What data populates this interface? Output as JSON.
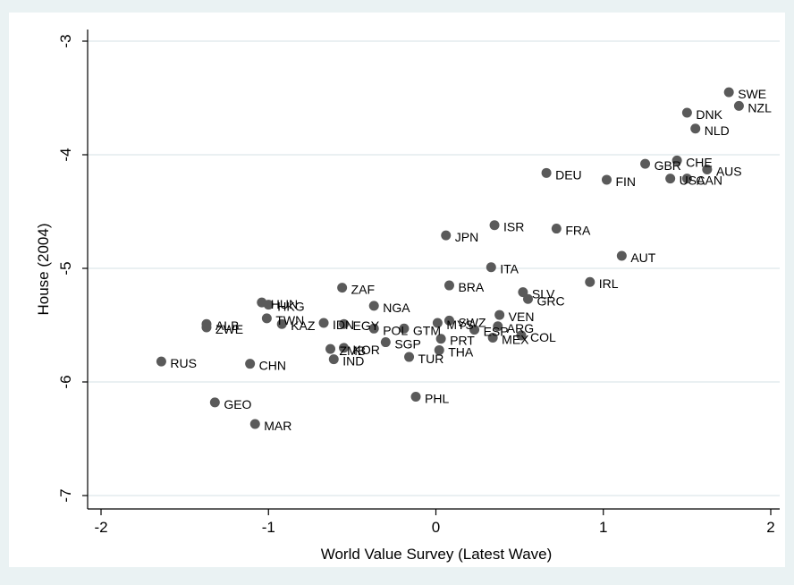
{
  "chart_data": {
    "type": "scatter",
    "title": "",
    "xlabel": "World Value Survey (Latest Wave)",
    "ylabel": "House (2004)",
    "xlim": [
      -2.1,
      2.05
    ],
    "ylim": [
      -7.1,
      -2.8
    ],
    "xticks": [
      -2,
      -1,
      0,
      1,
      2
    ],
    "yticks": [
      -7,
      -6,
      -5,
      -4,
      -3
    ],
    "grid": true,
    "colors": {
      "point": "#5a5a5a",
      "background": "#eaf2f3",
      "plot": "#ffffff",
      "grid": "#e4ebee"
    },
    "points": [
      {
        "label": "SWE",
        "x": 1.75,
        "y": -3.45
      },
      {
        "label": "NZL",
        "x": 1.81,
        "y": -3.57
      },
      {
        "label": "DNK",
        "x": 1.5,
        "y": -3.63
      },
      {
        "label": "NLD",
        "x": 1.55,
        "y": -3.77
      },
      {
        "label": "CHE",
        "x": 1.44,
        "y": -4.05
      },
      {
        "label": "GBR",
        "x": 1.25,
        "y": -4.08
      },
      {
        "label": "AUS",
        "x": 1.62,
        "y": -4.13
      },
      {
        "label": "USA",
        "x": 1.4,
        "y": -4.21
      },
      {
        "label": "CAN",
        "x": 1.5,
        "y": -4.21
      },
      {
        "label": "DEU",
        "x": 0.66,
        "y": -4.16
      },
      {
        "label": "FIN",
        "x": 1.02,
        "y": -4.22
      },
      {
        "label": "ISR",
        "x": 0.35,
        "y": -4.62
      },
      {
        "label": "FRA",
        "x": 0.72,
        "y": -4.65
      },
      {
        "label": "JPN",
        "x": 0.06,
        "y": -4.71
      },
      {
        "label": "AUT",
        "x": 1.11,
        "y": -4.89
      },
      {
        "label": "ITA",
        "x": 0.33,
        "y": -4.99
      },
      {
        "label": "IRL",
        "x": 0.92,
        "y": -5.12
      },
      {
        "label": "BRA",
        "x": 0.08,
        "y": -5.15
      },
      {
        "label": "ZAF",
        "x": -0.56,
        "y": -5.17
      },
      {
        "label": "SLV",
        "x": 0.52,
        "y": -5.21
      },
      {
        "label": "GRC",
        "x": 0.55,
        "y": -5.27
      },
      {
        "label": "HUN",
        "x": -1.04,
        "y": -5.3
      },
      {
        "label": "HKG",
        "x": -1.0,
        "y": -5.32
      },
      {
        "label": "NGA",
        "x": -0.37,
        "y": -5.33
      },
      {
        "label": "VEN",
        "x": 0.38,
        "y": -5.41
      },
      {
        "label": "TWN",
        "x": -1.01,
        "y": -5.44
      },
      {
        "label": "SWZ",
        "x": 0.08,
        "y": -5.46
      },
      {
        "label": "MYS",
        "x": 0.01,
        "y": -5.48
      },
      {
        "label": "IDN",
        "x": -0.67,
        "y": -5.48
      },
      {
        "label": "EGY",
        "x": -0.55,
        "y": -5.49
      },
      {
        "label": "KAZ",
        "x": -0.92,
        "y": -5.49
      },
      {
        "label": "ALB",
        "x": -1.37,
        "y": -5.49
      },
      {
        "label": "ZWE",
        "x": -1.37,
        "y": -5.52
      },
      {
        "label": "ARG",
        "x": 0.37,
        "y": -5.51
      },
      {
        "label": "POL",
        "x": -0.37,
        "y": -5.53
      },
      {
        "label": "GTM",
        "x": -0.19,
        "y": -5.53
      },
      {
        "label": "ESP",
        "x": 0.23,
        "y": -5.54
      },
      {
        "label": "COL",
        "x": 0.51,
        "y": -5.59
      },
      {
        "label": "MEX",
        "x": 0.34,
        "y": -5.61
      },
      {
        "label": "PRT",
        "x": 0.03,
        "y": -5.62
      },
      {
        "label": "SGP",
        "x": -0.3,
        "y": -5.65
      },
      {
        "label": "THA",
        "x": 0.02,
        "y": -5.72
      },
      {
        "label": "ZMB",
        "x": -0.63,
        "y": -5.71
      },
      {
        "label": "KOR",
        "x": -0.55,
        "y": -5.7
      },
      {
        "label": "TUR",
        "x": -0.16,
        "y": -5.78
      },
      {
        "label": "IND",
        "x": -0.61,
        "y": -5.8
      },
      {
        "label": "RUS",
        "x": -1.64,
        "y": -5.82
      },
      {
        "label": "CHN",
        "x": -1.11,
        "y": -5.84
      },
      {
        "label": "PHL",
        "x": -0.12,
        "y": -6.13
      },
      {
        "label": "GEO",
        "x": -1.32,
        "y": -6.18
      },
      {
        "label": "MAR",
        "x": -1.08,
        "y": -6.37
      }
    ]
  }
}
